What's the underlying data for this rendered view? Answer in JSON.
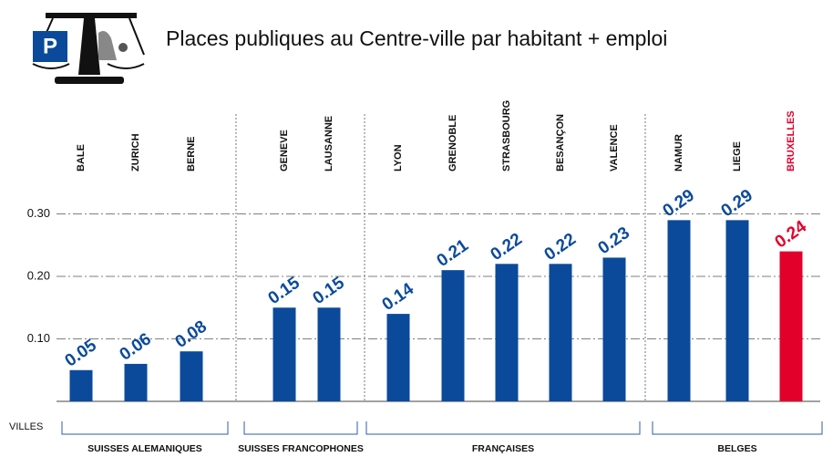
{
  "chart_data": {
    "type": "bar",
    "title": "Places publiques au Centre-ville par habitant + emploi",
    "logo_text": "P",
    "x_label": "VILLES",
    "categories": [
      "BALE",
      "ZURICH",
      "BERNE",
      "GENEVE",
      "LAUSANNE",
      "LYON",
      "GRENOBLE",
      "STRASBOURG",
      "BESANÇON",
      "VALENCE",
      "NAMUR",
      "LIEGE",
      "BRUXELLES"
    ],
    "values": [
      0.05,
      0.06,
      0.08,
      0.15,
      0.15,
      0.14,
      0.21,
      0.22,
      0.22,
      0.23,
      0.29,
      0.29,
      0.24
    ],
    "colors": [
      "#0b4a9b",
      "#0b4a9b",
      "#0b4a9b",
      "#0b4a9b",
      "#0b4a9b",
      "#0b4a9b",
      "#0b4a9b",
      "#0b4a9b",
      "#0b4a9b",
      "#0b4a9b",
      "#0b4a9b",
      "#0b4a9b",
      "#e2002b"
    ],
    "groups": [
      "SUISSES ALEMANIQUES",
      "SUISSES FRANCOPHONES",
      "FRANÇAISES",
      "BELGES"
    ],
    "ylim": [
      0,
      0.5
    ],
    "yticks": [
      {
        "value": 0.1,
        "label": "0.10"
      },
      {
        "value": 0.2,
        "label": "0.20"
      },
      {
        "value": 0.3,
        "label": "0.30"
      }
    ],
    "grid": true
  }
}
